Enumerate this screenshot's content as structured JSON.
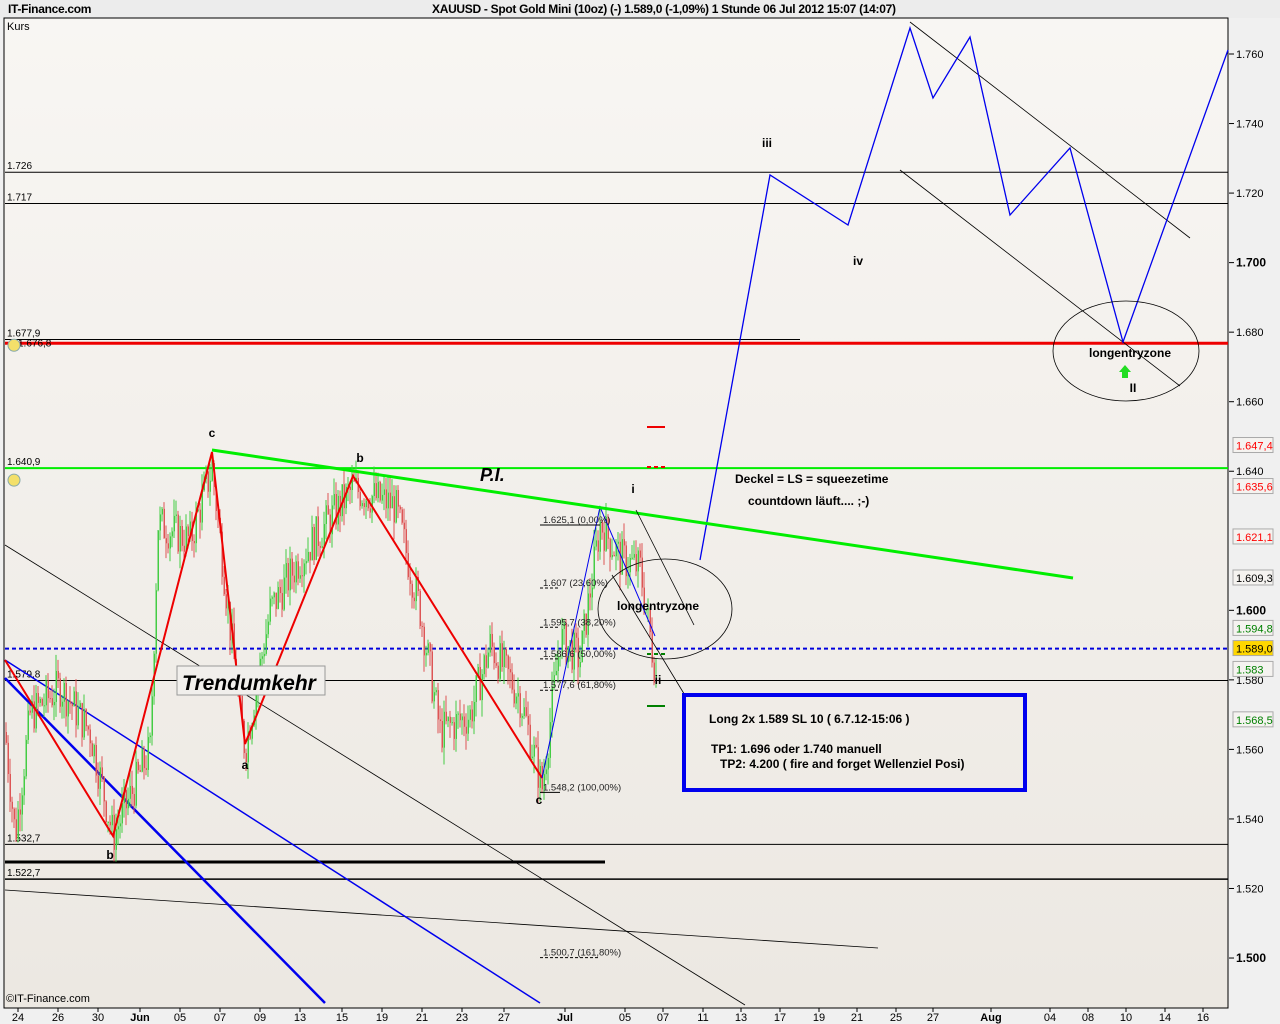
{
  "header": {
    "site": "IT-Finance.com",
    "title": "XAUUSD - Spot Gold Mini (10oz) (-)    1.589,0 (-1,09%)    1 Stunde  06 Jul 2012 15:07 (14:07)"
  },
  "chart_data": {
    "type": "candlestick",
    "title": "XAUUSD - Spot Gold Mini (10oz) (-)",
    "ylabel": "Kurs",
    "timeframe": "1 Stunde",
    "ylim": [
      1.49,
      1.77
    ],
    "grid": false,
    "last_price": 1.589,
    "change": "-1,09%",
    "watermark": "©IT-Finance.com",
    "colors": {
      "up": "#44cc44",
      "down": "#dd5555",
      "support": "#00ee00",
      "resistance": "#ee0000",
      "projection": "#0000ff"
    },
    "y_ticks": [
      {
        "value": 1.76,
        "label": "1.760",
        "bold": false
      },
      {
        "value": 1.74,
        "label": "1.740",
        "bold": false
      },
      {
        "value": 1.72,
        "label": "1.720",
        "bold": false
      },
      {
        "value": 1.7,
        "label": "1.700",
        "bold": true
      },
      {
        "value": 1.68,
        "label": "1.680",
        "bold": false
      },
      {
        "value": 1.66,
        "label": "1.660",
        "bold": false
      },
      {
        "value": 1.64,
        "label": "1.640",
        "bold": false
      },
      {
        "value": 1.6,
        "label": "1.600",
        "bold": true
      },
      {
        "value": 1.58,
        "label": "1.580",
        "bold": false
      },
      {
        "value": 1.56,
        "label": "1.560",
        "bold": false
      },
      {
        "value": 1.54,
        "label": "1.540",
        "bold": false
      },
      {
        "value": 1.52,
        "label": "1.520",
        "bold": false
      },
      {
        "value": 1.5,
        "label": "1.500",
        "bold": true
      }
    ],
    "x_ticks": [
      "24",
      "26",
      "30",
      "Jun",
      "05",
      "07",
      "09",
      "13",
      "15",
      "19",
      "21",
      "23",
      "27",
      "Jul",
      "05",
      "07",
      "11",
      "13",
      "17",
      "19",
      "21",
      "25",
      "27",
      "Aug",
      "04",
      "08",
      "10",
      "14",
      "16"
    ],
    "price_badges": [
      {
        "value": 1.6474,
        "label": "1.647,4",
        "color": "#ff0000",
        "bg": "#f5f3f0"
      },
      {
        "value": 1.6356,
        "label": "1.635,6",
        "color": "#ff0000",
        "bg": "#f5f3f0"
      },
      {
        "value": 1.6211,
        "label": "1.621,1",
        "color": "#ff0000",
        "bg": "#f5f3f0"
      },
      {
        "value": 1.6093,
        "label": "1.609,3",
        "color": "#000000",
        "bg": "#f5f3f0"
      },
      {
        "value": 1.5948,
        "label": "1.594,8",
        "color": "#008000",
        "bg": "#f5f3f0"
      },
      {
        "value": 1.589,
        "label": "1.589,0",
        "color": "#000000",
        "bg": "#ffd700"
      },
      {
        "value": 1.583,
        "label": "1.583",
        "color": "#008000",
        "bg": "#f5f3f0"
      },
      {
        "value": 1.5685,
        "label": "1.568,5",
        "color": "#008000",
        "bg": "#f5f3f0"
      }
    ],
    "horizontal_levels": [
      {
        "value": 1.726,
        "label": "1.726",
        "color": "#000000"
      },
      {
        "value": 1.717,
        "label": "1.717",
        "color": "#000000"
      },
      {
        "value": 1.6779,
        "label": "1.677,9",
        "color": "#000000"
      },
      {
        "value": 1.6768,
        "label": "1.676,8",
        "color": "#ee0000"
      },
      {
        "value": 1.6409,
        "label": "1.640,9",
        "color": "#00ee00"
      },
      {
        "value": 1.589,
        "label": "",
        "color": "#0000dd"
      },
      {
        "value": 1.5798,
        "label": "1.579,8",
        "color": "#000000"
      },
      {
        "value": 1.5327,
        "label": "1.532,7",
        "color": "#000000"
      },
      {
        "value": 1.5227,
        "label": "1.522,7",
        "color": "#000000"
      }
    ],
    "fibonacci": [
      {
        "value": 1.6251,
        "label": "1.625,1 (0,00%)"
      },
      {
        "value": 1.607,
        "label": "1.607 (23,60%)"
      },
      {
        "value": 1.5957,
        "label": "1.595,7 (38,20%)"
      },
      {
        "value": 1.5866,
        "label": "1.586,6 (50,00%)"
      },
      {
        "value": 1.5776,
        "label": "1.577,6 (61,80%)"
      },
      {
        "value": 1.5482,
        "label": "1.548,2 (100,00%)"
      },
      {
        "value": 1.5007,
        "label": "1.500,7 (161,80%)"
      }
    ],
    "wave_labels": [
      "c",
      "b",
      "a",
      "c",
      "b",
      "i",
      "ii",
      "iii",
      "iv",
      "II"
    ],
    "annotations": {
      "pi": "P.I.",
      "trendumkehr": "Trendumkehr",
      "zone1": "longentryzone",
      "zone2": "longentryzone",
      "deckel": "Deckel = LS = squeezetime",
      "countdown": "countdown läuft.... ;-)",
      "trade_line1": "Long 2x 1.589 SL 10  ( 6.7.12-15:06 )",
      "trade_line2": "TP1: 1.696 oder  1.740 manuell",
      "trade_line3": "TP2:  4.200  ( fire and forget Wellenziel Posi)"
    },
    "price_path_keypoints": [
      1.565,
      1.535,
      1.57,
      1.578,
      1.565,
      1.535,
      1.56,
      1.625,
      1.62,
      1.641,
      1.57,
      1.56,
      1.6,
      1.615,
      1.635,
      1.63,
      1.6,
      1.565,
      1.57,
      1.59,
      1.575,
      1.549,
      1.592,
      1.586,
      1.625,
      1.615,
      1.612,
      1.583
    ]
  }
}
